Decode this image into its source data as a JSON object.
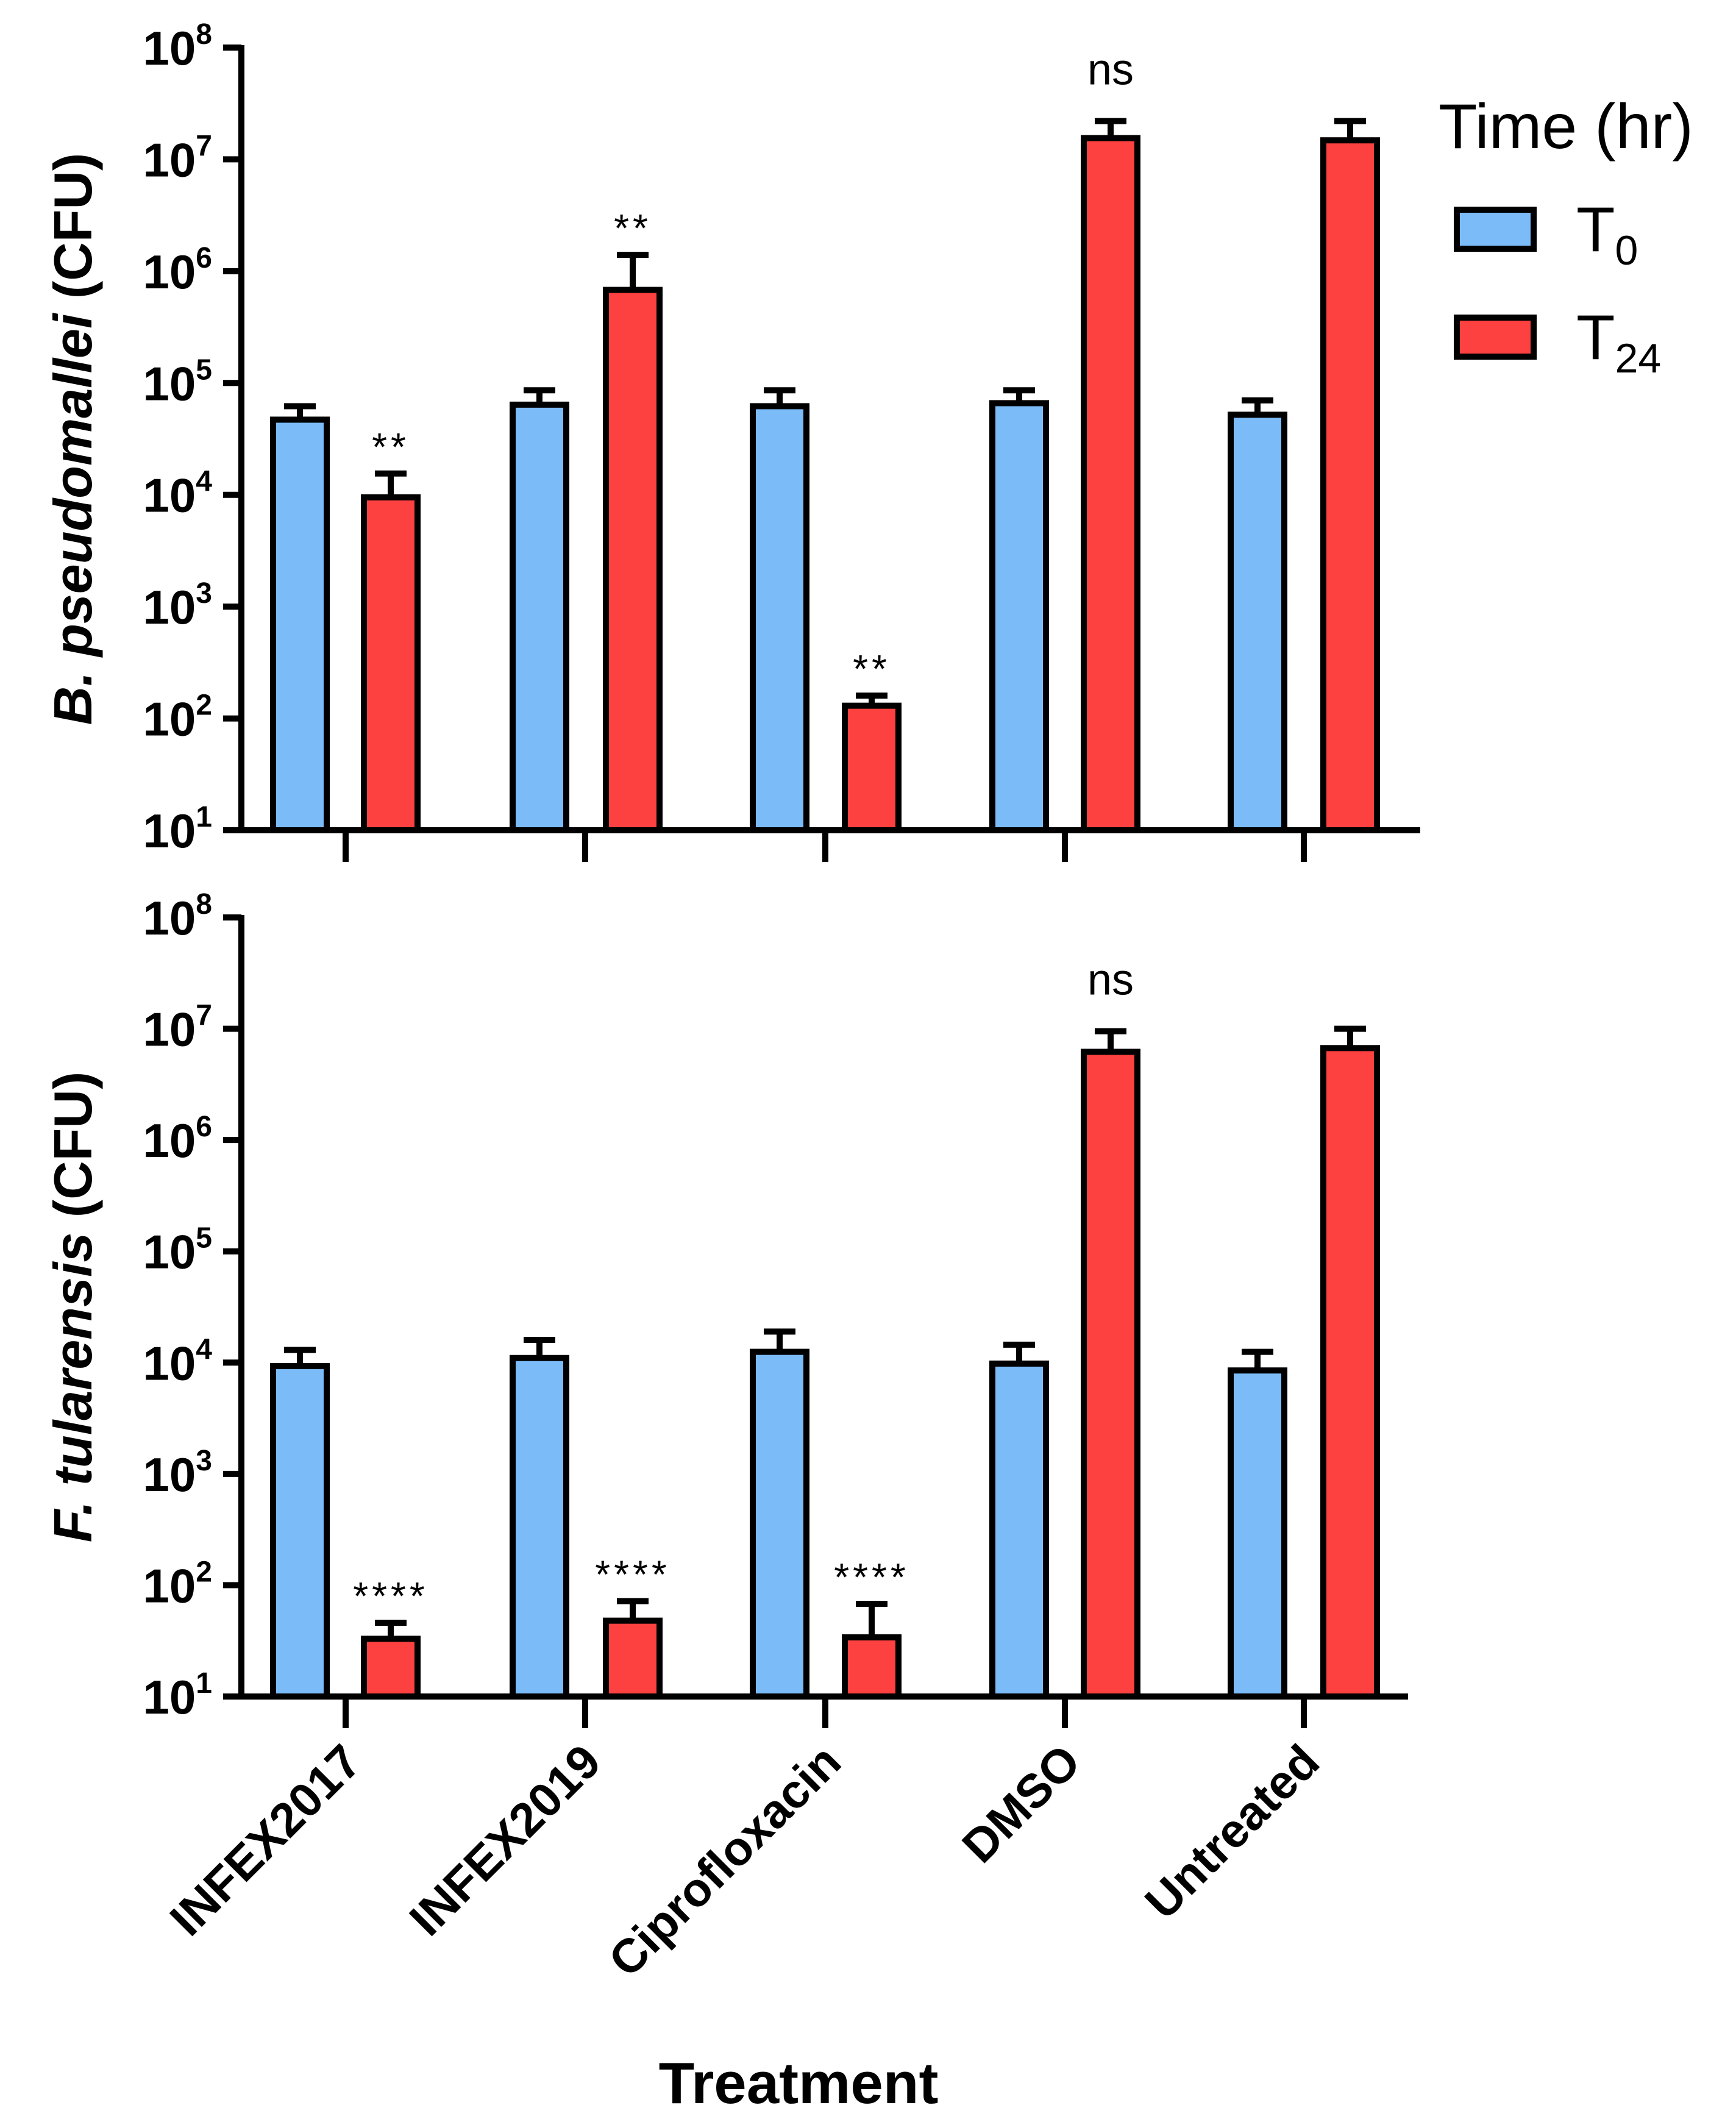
{
  "colors": {
    "T0": "#7bbcf8",
    "T24": "#fd4040",
    "stroke": "#000000"
  },
  "legend": {
    "title": "Time (hr)",
    "items": [
      {
        "key": "T0",
        "base": "T",
        "sub": "0"
      },
      {
        "key": "T24",
        "base": "T",
        "sub": "24"
      }
    ]
  },
  "xlabel": "Treatment",
  "chart_data": [
    {
      "type": "bar",
      "yscale": "log",
      "ylim": [
        10,
        100000000
      ],
      "ylabel_italic": "B. pseudomallei",
      "ylabel_rest": " (CFU)",
      "ytick_labels": [
        {
          "base": "10",
          "exp": "1"
        },
        {
          "base": "10",
          "exp": "2"
        },
        {
          "base": "10",
          "exp": "3"
        },
        {
          "base": "10",
          "exp": "4"
        },
        {
          "base": "10",
          "exp": "5"
        },
        {
          "base": "10",
          "exp": "6"
        },
        {
          "base": "10",
          "exp": "7"
        },
        {
          "base": "10",
          "exp": "8"
        }
      ],
      "categories": [
        "INFEX2017",
        "INFEX2019",
        "Ciprofloxacin",
        "DMSO",
        "Untreated"
      ],
      "series": [
        {
          "name": "T0",
          "values": [
            47000,
            64000,
            62000,
            66000,
            52000
          ],
          "error": [
            62000,
            86000,
            86000,
            86000,
            70000
          ]
        },
        {
          "name": "T24",
          "values": [
            9500,
            680000,
            130,
            15500000,
            14800000
          ],
          "error": [
            15500,
            1400000,
            160,
            22000000,
            22000000
          ]
        }
      ],
      "significance": [
        "**",
        "**",
        "**",
        "ns",
        ""
      ]
    },
    {
      "type": "bar",
      "yscale": "log",
      "ylim": [
        10,
        100000000
      ],
      "ylabel_italic": "F. tularensis",
      "ylabel_rest": " (CFU)",
      "ytick_labels": [
        {
          "base": "10",
          "exp": "1"
        },
        {
          "base": "10",
          "exp": "2"
        },
        {
          "base": "10",
          "exp": "3"
        },
        {
          "base": "10",
          "exp": "4"
        },
        {
          "base": "10",
          "exp": "5"
        },
        {
          "base": "10",
          "exp": "6"
        },
        {
          "base": "10",
          "exp": "7"
        },
        {
          "base": "10",
          "exp": "8"
        }
      ],
      "categories": [
        "INFEX2017",
        "INFEX2019",
        "Ciprofloxacin",
        "DMSO",
        "Untreated"
      ],
      "series": [
        {
          "name": "T0",
          "values": [
            9300,
            11000,
            12500,
            9800,
            8500
          ],
          "error": [
            13000,
            16000,
            19000,
            14500,
            12500
          ]
        },
        {
          "name": "T24",
          "values": [
            33,
            48,
            34,
            6200000,
            6700000
          ],
          "error": [
            46,
            72,
            68,
            9500000,
            10000000
          ]
        }
      ],
      "significance": [
        "****",
        "****",
        "****",
        "ns",
        ""
      ]
    }
  ]
}
